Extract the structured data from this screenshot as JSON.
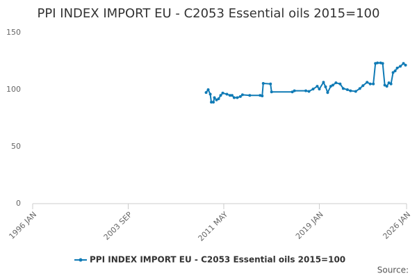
{
  "chart_data": {
    "type": "line",
    "title": "PPI INDEX IMPORT EU - C2053 Essential oils 2015=100",
    "source_label": "Source:",
    "xlim": [
      "1996 JAN",
      "2026 JAN"
    ],
    "xticks": [
      "1996 JAN",
      "2003 SEP",
      "2011 MAY",
      "2019 JAN",
      "2026 JAN"
    ],
    "ylim": [
      0,
      150
    ],
    "yticks": [
      0,
      50,
      100,
      150
    ],
    "grid": false,
    "legend": "bottom",
    "x": [
      "2009 DEC",
      "2010 FEB",
      "2010 APR",
      "2010 MAY",
      "2010 JUL",
      "2010 AUG",
      "2010 OCT",
      "2010 DEC",
      "2011 FEB",
      "2011 APR",
      "2011 AUG",
      "2011 NOV",
      "2012 JAN",
      "2012 MAR",
      "2012 JUN",
      "2012 SEP",
      "2012 NOV",
      "2013 JUN",
      "2014 APR",
      "2014 JUN",
      "2014 JUL",
      "2015 FEB",
      "2015 MAR",
      "2016 NOV",
      "2017 JAN",
      "2017 DEC",
      "2018 MAR",
      "2018 JUL",
      "2018 NOV",
      "2019 JAN",
      "2019 MAY",
      "2019 JUL",
      "2019 SEP",
      "2019 DEC",
      "2020 FEB",
      "2020 MAY",
      "2020 SEP",
      "2020 DEC",
      "2021 APR",
      "2021 JUL",
      "2021 DEC",
      "2022 APR",
      "2022 JUL",
      "2022 NOV",
      "2023 FEB",
      "2023 MAY",
      "2023 JUL",
      "2023 SEP",
      "2023 DEC",
      "2024 FEB",
      "2024 APR",
      "2024 JUN",
      "2024 AUG",
      "2024 OCT",
      "2024 DEC",
      "2025 FEB",
      "2025 APR",
      "2025 JUL",
      "2025 OCT",
      "2025 DEC"
    ],
    "series": [
      {
        "name": "PPI INDEX IMPORT EU - C2053 Essential oils 2015=100",
        "color": "#0f7ab5",
        "values": [
          97.5,
          100,
          96,
          89,
          89,
          93,
          91,
          92,
          95,
          97,
          96,
          95,
          95,
          93,
          93,
          94,
          95.5,
          95,
          95,
          94.5,
          105.5,
          105,
          98,
          98,
          99,
          99,
          98.5,
          100.5,
          103,
          100.5,
          106.5,
          102.5,
          97.5,
          103,
          104,
          106,
          105,
          101,
          100,
          99,
          98.5,
          101,
          103.5,
          106.5,
          105,
          105,
          123,
          123.5,
          123.5,
          123,
          104,
          103,
          106,
          105,
          115,
          116.5,
          119,
          120.5,
          123,
          121.5
        ]
      }
    ]
  }
}
